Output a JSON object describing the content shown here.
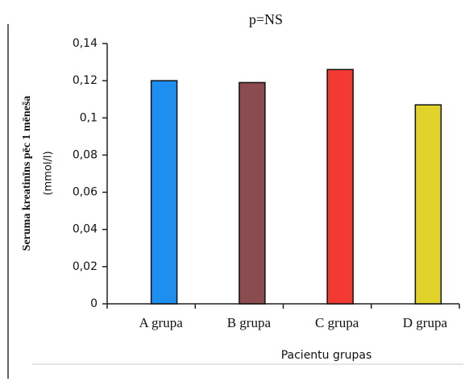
{
  "chart_data": {
    "type": "bar",
    "title": "p=NS",
    "y_label": [
      "Seruma kreatinīns pēc 1 mēneša",
      "(mmol/l)"
    ],
    "x_label": "Pacientu grupas",
    "categories": [
      "A grupa",
      "B grupa",
      "C grupa",
      "D grupa"
    ],
    "values": [
      0.12,
      0.119,
      0.126,
      0.107
    ],
    "colors": [
      "#1e8ff0",
      "#8c4c4f",
      "#f23a32",
      "#e2d22c"
    ],
    "ylim": [
      0,
      0.14
    ],
    "yticks": [
      0,
      {
        "value": 0.02,
        "label": "0,02"
      },
      {
        "value": 0.04,
        "label": "0,04"
      },
      {
        "value": 0.06,
        "label": "0,06"
      },
      {
        "value": 0.08,
        "label": "0,08"
      },
      {
        "value": 0.1,
        "label": "0,1"
      },
      {
        "value": 0.12,
        "label": "0,12"
      },
      {
        "value": 0.14,
        "label": "0,14"
      }
    ]
  }
}
